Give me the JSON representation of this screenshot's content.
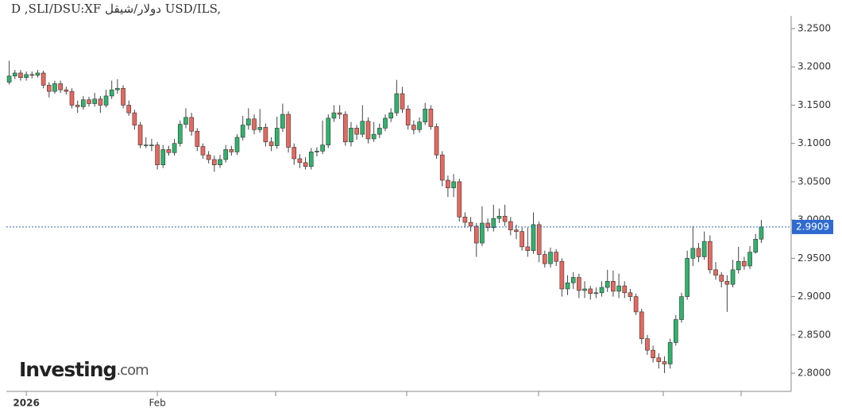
{
  "chart_data": {
    "type": "candlestick",
    "title": "D ,SLI/DSU:XF دولار/شيقل USD/ILS,",
    "watermark": "Investing",
    "watermark_suffix": ".com",
    "up_color": "#2fb36c",
    "down_color": "#e8685e",
    "wick_color": "#444444",
    "ylim": [
      2.7762,
      3.2666
    ],
    "yticks": [
      {
        "value": 2.8,
        "label": "2.8000"
      },
      {
        "value": 2.85,
        "label": "2.8500"
      },
      {
        "value": 2.9,
        "label": "2.9000"
      },
      {
        "value": 2.95,
        "label": "2.9500"
      },
      {
        "value": 3.0,
        "label": "3.0000"
      },
      {
        "value": 3.05,
        "label": "3.0500"
      },
      {
        "value": 3.1,
        "label": "3.1000"
      },
      {
        "value": 3.15,
        "label": "3.1500"
      },
      {
        "value": 3.2,
        "label": "3.2000"
      },
      {
        "value": 3.25,
        "label": "3.2500"
      }
    ],
    "price_line": 2.9909,
    "price_line_color": "#2f6ad0",
    "categories": [
      null,
      null,
      null,
      "2026",
      null,
      null,
      null,
      null,
      null,
      null,
      null,
      null,
      null,
      null,
      null,
      null,
      null,
      null,
      null,
      null,
      null,
      null,
      null,
      null,
      null,
      null,
      "Feb",
      null,
      null,
      null,
      null,
      null,
      null,
      null,
      null,
      null,
      null,
      null,
      null,
      null,
      null,
      null,
      null,
      null,
      null,
      null,
      null,
      null,
      null,
      null,
      null,
      null,
      null,
      null,
      null,
      null,
      null,
      null,
      null,
      null,
      null,
      null,
      null,
      null,
      null,
      null,
      null,
      null,
      null,
      null,
      null,
      null,
      null,
      null,
      null,
      null,
      null,
      null,
      null,
      null,
      null,
      null,
      null,
      null,
      null,
      null,
      null,
      null,
      null,
      null,
      null,
      null,
      null,
      null,
      null,
      null,
      null,
      null,
      null,
      null,
      null,
      null,
      null,
      null,
      null,
      null,
      null,
      null,
      null,
      null,
      null,
      null,
      null,
      null,
      null,
      null,
      null,
      null,
      null,
      null,
      null,
      null,
      null,
      null,
      null,
      null,
      null,
      null,
      null,
      null,
      null,
      null,
      null
    ],
    "open": [
      3.18,
      3.188,
      3.192,
      3.186,
      3.19,
      3.189,
      3.192,
      3.176,
      3.168,
      3.178,
      3.17,
      3.168,
      3.15,
      3.148,
      3.157,
      3.152,
      3.158,
      3.15,
      3.162,
      3.17,
      3.172,
      3.15,
      3.14,
      3.124,
      3.098,
      3.098,
      3.098,
      3.072,
      3.092,
      3.088,
      3.1,
      3.125,
      3.134,
      3.116,
      3.096,
      3.085,
      3.079,
      3.072,
      3.079,
      3.092,
      3.089,
      3.108,
      3.124,
      3.132,
      3.118,
      3.121,
      3.102,
      3.097,
      3.12,
      3.138,
      3.095,
      3.08,
      3.075,
      3.07,
      3.089,
      3.09,
      3.098,
      3.133,
      3.14,
      3.138,
      3.102,
      3.12,
      3.112,
      3.129,
      3.106,
      3.112,
      3.12,
      3.133,
      3.14,
      3.165,
      3.145,
      3.124,
      3.118,
      3.128,
      3.145,
      3.122,
      3.085,
      3.052,
      3.042,
      3.05,
      3.004,
      2.997,
      2.992,
      2.97,
      2.996,
      2.99,
      3.002,
      3.005,
      2.998,
      2.987,
      2.985,
      2.965,
      2.96,
      2.994,
      2.955,
      2.943,
      2.958,
      2.946,
      2.91,
      2.918,
      2.925,
      2.908,
      2.91,
      2.904,
      2.905,
      2.912,
      2.92,
      2.907,
      2.914,
      2.905,
      2.9,
      2.88,
      2.845,
      2.83,
      2.82,
      2.815,
      2.812,
      2.84,
      2.87,
      2.9,
      2.95,
      2.963,
      2.952,
      2.972,
      2.935,
      2.928,
      2.92,
      2.916,
      2.935,
      2.946,
      2.94,
      2.958,
      2.975
    ],
    "high": [
      3.208,
      3.196,
      3.196,
      3.194,
      3.194,
      3.196,
      3.195,
      3.18,
      3.182,
      3.182,
      3.174,
      3.172,
      3.156,
      3.162,
      3.161,
      3.166,
      3.162,
      3.17,
      3.182,
      3.184,
      3.176,
      3.156,
      3.144,
      3.128,
      3.108,
      3.106,
      3.102,
      3.098,
      3.097,
      3.106,
      3.13,
      3.146,
      3.14,
      3.12,
      3.1,
      3.09,
      3.084,
      3.085,
      3.098,
      3.097,
      3.112,
      3.136,
      3.146,
      3.138,
      3.145,
      3.126,
      3.108,
      3.135,
      3.152,
      3.142,
      3.1,
      3.086,
      3.082,
      3.094,
      3.095,
      3.13,
      3.138,
      3.15,
      3.15,
      3.142,
      3.128,
      3.124,
      3.15,
      3.134,
      3.128,
      3.126,
      3.138,
      3.146,
      3.183,
      3.174,
      3.15,
      3.13,
      3.134,
      3.153,
      3.15,
      3.126,
      3.09,
      3.058,
      3.06,
      3.054,
      3.01,
      3.004,
      2.996,
      3.018,
      3.002,
      3.02,
      3.015,
      3.02,
      3.004,
      2.994,
      2.99,
      2.99,
      3.01,
      2.998,
      2.96,
      2.964,
      2.962,
      2.95,
      2.928,
      2.932,
      2.93,
      2.92,
      2.914,
      2.912,
      2.92,
      2.935,
      2.934,
      2.93,
      2.92,
      2.91,
      2.904,
      2.884,
      2.85,
      2.836,
      2.826,
      2.822,
      2.845,
      2.876,
      2.905,
      2.96,
      2.992,
      2.97,
      2.985,
      2.98,
      2.945,
      2.932,
      2.928,
      2.948,
      2.965,
      2.952,
      2.966,
      2.982,
      3.0
    ],
    "low": [
      3.177,
      3.184,
      3.182,
      3.182,
      3.185,
      3.186,
      3.172,
      3.16,
      3.165,
      3.166,
      3.164,
      3.146,
      3.14,
      3.144,
      3.148,
      3.148,
      3.14,
      3.147,
      3.158,
      3.165,
      3.146,
      3.136,
      3.118,
      3.094,
      3.094,
      3.09,
      3.066,
      3.068,
      3.084,
      3.084,
      3.096,
      3.12,
      3.11,
      3.09,
      3.08,
      3.074,
      3.063,
      3.068,
      3.075,
      3.084,
      3.085,
      3.104,
      3.118,
      3.112,
      3.114,
      3.096,
      3.09,
      3.093,
      3.115,
      3.088,
      3.072,
      3.068,
      3.066,
      3.066,
      3.083,
      3.086,
      3.094,
      3.128,
      3.132,
      3.097,
      3.096,
      3.105,
      3.108,
      3.1,
      3.102,
      3.107,
      3.116,
      3.128,
      3.136,
      3.14,
      3.118,
      3.112,
      3.114,
      3.124,
      3.118,
      3.08,
      3.044,
      3.03,
      3.03,
      2.998,
      2.99,
      2.985,
      2.952,
      2.966,
      2.985,
      2.985,
      2.996,
      2.992,
      2.98,
      2.975,
      2.96,
      2.952,
      2.956,
      2.945,
      2.938,
      2.938,
      2.94,
      2.9,
      2.902,
      2.91,
      2.898,
      2.898,
      2.896,
      2.898,
      2.9,
      2.906,
      2.9,
      2.898,
      2.898,
      2.894,
      2.876,
      2.838,
      2.824,
      2.814,
      2.806,
      2.8,
      2.806,
      2.836,
      2.866,
      2.896,
      2.94,
      2.945,
      2.948,
      2.93,
      2.922,
      2.912,
      2.88,
      2.912,
      2.93,
      2.935,
      2.936,
      2.956,
      2.97
    ],
    "close": [
      3.188,
      3.192,
      3.186,
      3.19,
      3.189,
      3.192,
      3.176,
      3.168,
      3.178,
      3.17,
      3.168,
      3.15,
      3.148,
      3.157,
      3.152,
      3.158,
      3.15,
      3.162,
      3.17,
      3.172,
      3.15,
      3.14,
      3.124,
      3.098,
      3.098,
      3.098,
      3.072,
      3.092,
      3.088,
      3.1,
      3.125,
      3.134,
      3.116,
      3.096,
      3.085,
      3.079,
      3.072,
      3.079,
      3.092,
      3.089,
      3.108,
      3.124,
      3.132,
      3.118,
      3.121,
      3.102,
      3.097,
      3.12,
      3.138,
      3.095,
      3.08,
      3.075,
      3.07,
      3.089,
      3.09,
      3.098,
      3.133,
      3.14,
      3.138,
      3.102,
      3.12,
      3.112,
      3.129,
      3.106,
      3.112,
      3.12,
      3.133,
      3.14,
      3.165,
      3.145,
      3.124,
      3.118,
      3.128,
      3.145,
      3.122,
      3.085,
      3.052,
      3.042,
      3.05,
      3.004,
      2.997,
      2.992,
      2.97,
      2.996,
      2.99,
      3.002,
      3.005,
      2.998,
      2.987,
      2.985,
      2.965,
      2.96,
      2.994,
      2.955,
      2.943,
      2.958,
      2.946,
      2.91,
      2.918,
      2.925,
      2.908,
      2.91,
      2.904,
      2.905,
      2.912,
      2.92,
      2.907,
      2.914,
      2.905,
      2.9,
      2.88,
      2.845,
      2.83,
      2.82,
      2.815,
      2.812,
      2.84,
      2.87,
      2.9,
      2.95,
      2.963,
      2.952,
      2.972,
      2.935,
      2.928,
      2.92,
      2.916,
      2.935,
      2.946,
      2.94,
      2.958,
      2.975,
      2.9909
    ]
  }
}
